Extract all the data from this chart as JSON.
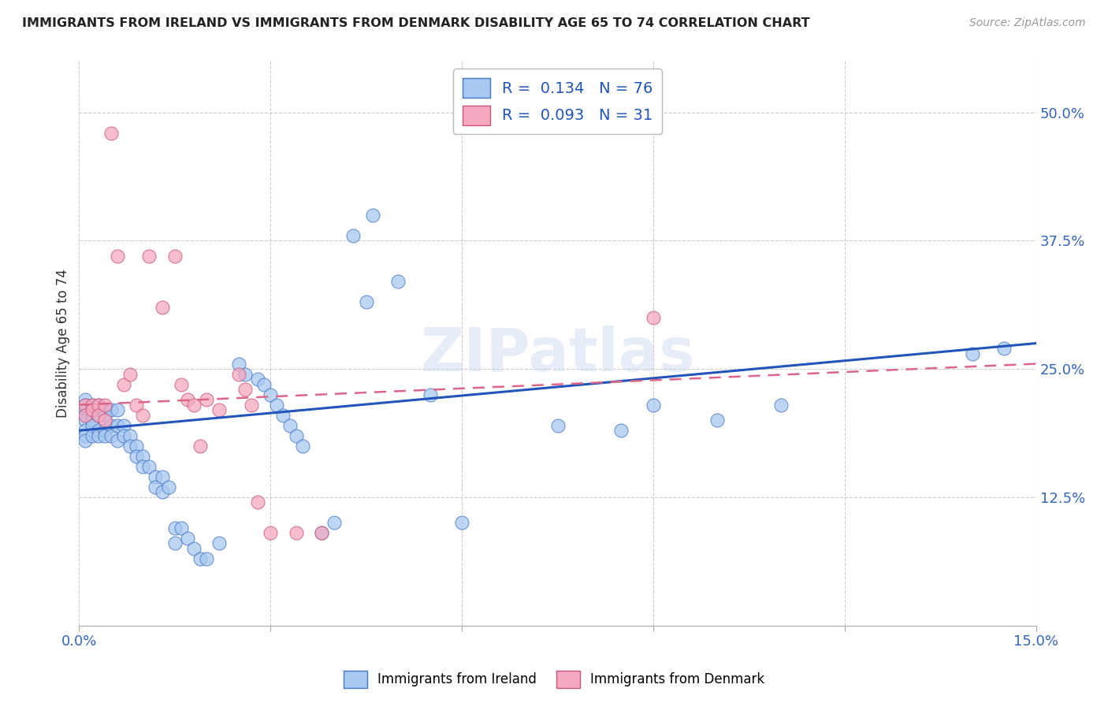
{
  "title": "IMMIGRANTS FROM IRELAND VS IMMIGRANTS FROM DENMARK DISABILITY AGE 65 TO 74 CORRELATION CHART",
  "source": "Source: ZipAtlas.com",
  "ylabel": "Disability Age 65 to 74",
  "xlim": [
    0.0,
    0.15
  ],
  "ylim": [
    0.0,
    0.55
  ],
  "xticks": [
    0.0,
    0.03,
    0.06,
    0.09,
    0.12,
    0.15
  ],
  "yticks": [
    0.0,
    0.125,
    0.25,
    0.375,
    0.5
  ],
  "ireland_color": "#a8c8f0",
  "denmark_color": "#f5a8c0",
  "ireland_edge_color": "#4477cc",
  "denmark_edge_color": "#cc5577",
  "ireland_line_color": "#2255bb",
  "denmark_line_color": "#dd6688",
  "watermark": "ZIPatlas",
  "legend_ireland_r": "0.134",
  "legend_ireland_n": "76",
  "legend_denmark_r": "0.093",
  "legend_denmark_n": "31",
  "ireland_scatter_x": [
    0.001,
    0.001,
    0.001,
    0.001,
    0.001,
    0.001,
    0.001,
    0.001,
    0.002,
    0.002,
    0.002,
    0.002,
    0.002,
    0.002,
    0.003,
    0.003,
    0.003,
    0.003,
    0.003,
    0.004,
    0.004,
    0.004,
    0.004,
    0.005,
    0.005,
    0.005,
    0.006,
    0.006,
    0.006,
    0.007,
    0.007,
    0.008,
    0.008,
    0.009,
    0.009,
    0.01,
    0.01,
    0.011,
    0.012,
    0.012,
    0.013,
    0.013,
    0.014,
    0.015,
    0.015,
    0.016,
    0.017,
    0.018,
    0.019,
    0.02,
    0.022,
    0.025,
    0.026,
    0.028,
    0.029,
    0.03,
    0.031,
    0.032,
    0.033,
    0.034,
    0.035,
    0.038,
    0.04,
    0.043,
    0.045,
    0.046,
    0.05,
    0.055,
    0.06,
    0.075,
    0.085,
    0.09,
    0.1,
    0.11,
    0.14,
    0.145
  ],
  "ireland_scatter_y": [
    0.22,
    0.215,
    0.21,
    0.205,
    0.2,
    0.19,
    0.185,
    0.18,
    0.215,
    0.21,
    0.205,
    0.2,
    0.195,
    0.185,
    0.215,
    0.21,
    0.205,
    0.19,
    0.185,
    0.21,
    0.205,
    0.19,
    0.185,
    0.21,
    0.195,
    0.185,
    0.21,
    0.195,
    0.18,
    0.195,
    0.185,
    0.185,
    0.175,
    0.175,
    0.165,
    0.165,
    0.155,
    0.155,
    0.145,
    0.135,
    0.145,
    0.13,
    0.135,
    0.095,
    0.08,
    0.095,
    0.085,
    0.075,
    0.065,
    0.065,
    0.08,
    0.255,
    0.245,
    0.24,
    0.235,
    0.225,
    0.215,
    0.205,
    0.195,
    0.185,
    0.175,
    0.09,
    0.1,
    0.38,
    0.315,
    0.4,
    0.335,
    0.225,
    0.1,
    0.195,
    0.19,
    0.215,
    0.2,
    0.215,
    0.265,
    0.27
  ],
  "denmark_scatter_x": [
    0.001,
    0.001,
    0.002,
    0.002,
    0.003,
    0.003,
    0.004,
    0.004,
    0.005,
    0.006,
    0.007,
    0.008,
    0.009,
    0.01,
    0.011,
    0.013,
    0.015,
    0.016,
    0.017,
    0.018,
    0.019,
    0.02,
    0.022,
    0.025,
    0.026,
    0.027,
    0.028,
    0.03,
    0.034,
    0.038,
    0.09
  ],
  "denmark_scatter_y": [
    0.215,
    0.205,
    0.215,
    0.21,
    0.215,
    0.205,
    0.215,
    0.2,
    0.48,
    0.36,
    0.235,
    0.245,
    0.215,
    0.205,
    0.36,
    0.31,
    0.36,
    0.235,
    0.22,
    0.215,
    0.175,
    0.22,
    0.21,
    0.245,
    0.23,
    0.215,
    0.12,
    0.09,
    0.09,
    0.09,
    0.3
  ],
  "ireland_line_x0": 0.0,
  "ireland_line_y0": 0.19,
  "ireland_line_x1": 0.15,
  "ireland_line_y1": 0.275,
  "denmark_line_x0": 0.0,
  "denmark_line_y0": 0.215,
  "denmark_line_x1": 0.15,
  "denmark_line_y1": 0.255
}
